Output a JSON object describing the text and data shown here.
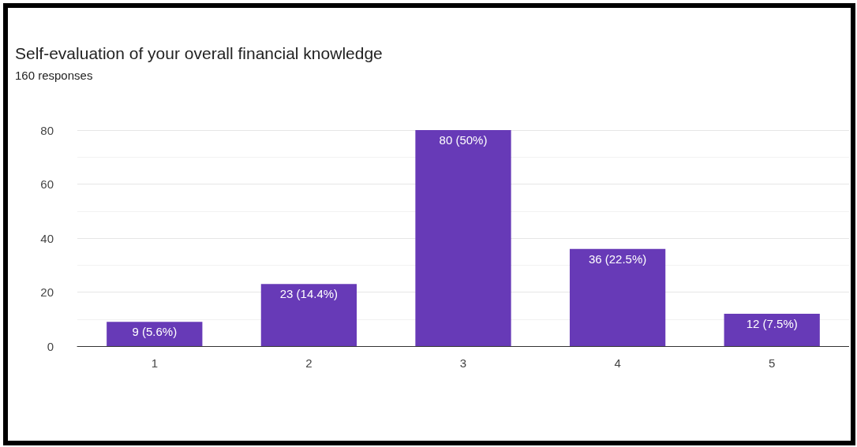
{
  "chart_data": {
    "type": "bar",
    "title": "Self-evaluation of your overall financial knowledge",
    "subtitle": "160 responses",
    "categories": [
      "1",
      "2",
      "3",
      "4",
      "5"
    ],
    "values": [
      9,
      23,
      80,
      36,
      12
    ],
    "value_labels": [
      "9 (5.6%)",
      "23 (14.4%)",
      "80 (50%)",
      "36 (22.5%)",
      "12 (7.5%)"
    ],
    "color": "#673ab7",
    "ylim": [
      0,
      80
    ],
    "yticks": [
      0,
      20,
      40,
      60,
      80
    ],
    "grid": "y"
  }
}
